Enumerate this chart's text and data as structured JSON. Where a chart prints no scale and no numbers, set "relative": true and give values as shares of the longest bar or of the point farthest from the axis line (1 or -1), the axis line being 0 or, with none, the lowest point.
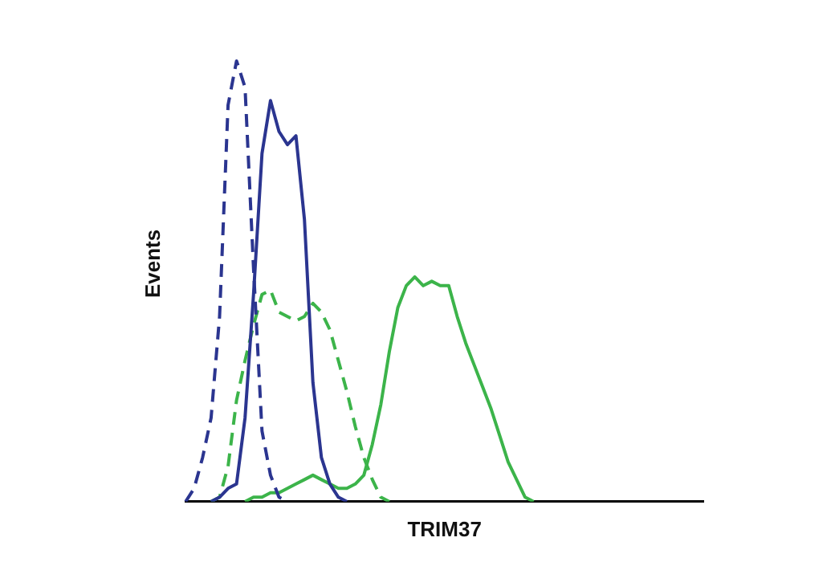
{
  "chart_data": {
    "type": "line",
    "relative": true,
    "xlabel": "TRIM37",
    "ylabel": "Events",
    "marker": "none",
    "grid": false,
    "legend": false,
    "tick_labels": false,
    "categories": [
      null,
      null,
      null,
      null,
      null,
      null,
      null,
      null,
      null,
      null,
      null,
      null,
      null,
      null,
      null,
      null,
      null,
      null,
      null,
      null,
      null,
      null,
      null,
      null,
      null,
      null,
      null,
      null,
      null,
      null,
      null,
      null,
      null,
      null,
      null,
      null,
      null,
      null,
      null,
      null,
      null,
      null,
      null,
      null,
      null,
      null,
      null,
      null,
      null,
      null,
      null,
      null,
      null,
      null,
      null,
      null,
      null,
      null,
      null,
      null,
      null,
      null
    ],
    "series": [
      {
        "color": "#2b3590",
        "line_style": "dashed",
        "values": [
          0,
          0.03,
          0.1,
          0.19,
          0.42,
          0.9,
          1.0,
          0.94,
          0.53,
          0.16,
          0.06,
          0.01,
          0,
          null,
          null,
          null,
          null,
          null,
          null,
          null,
          null,
          null,
          null,
          null,
          null,
          null,
          null,
          null,
          null,
          null,
          null,
          null,
          null,
          null,
          null,
          null,
          null,
          null,
          null,
          null,
          null,
          null,
          null,
          null,
          null,
          null,
          null,
          null,
          null,
          null,
          null,
          null,
          null,
          null,
          null,
          null,
          null,
          null,
          null,
          null,
          null,
          null
        ]
      },
      {
        "color": "#2b3590",
        "line_style": "solid",
        "values": [
          null,
          null,
          null,
          0,
          0.01,
          0.03,
          0.04,
          0.19,
          0.47,
          0.79,
          0.91,
          0.84,
          0.81,
          0.83,
          0.64,
          0.27,
          0.1,
          0.04,
          0.01,
          0,
          null,
          null,
          null,
          null,
          null,
          null,
          null,
          null,
          null,
          null,
          null,
          null,
          null,
          null,
          null,
          null,
          null,
          null,
          null,
          null,
          null,
          null,
          null,
          null,
          null,
          null,
          null,
          null,
          null,
          null,
          null,
          null,
          null,
          null,
          null,
          null,
          null,
          null,
          null,
          null,
          null,
          null
        ]
      },
      {
        "color": "#3cb44a",
        "line_style": "dashed",
        "values": [
          null,
          null,
          null,
          0,
          0.01,
          0.08,
          0.23,
          0.32,
          0.4,
          0.47,
          0.48,
          0.43,
          0.42,
          0.41,
          0.42,
          0.45,
          0.43,
          0.39,
          0.32,
          0.25,
          0.17,
          0.1,
          0.05,
          0.01,
          0,
          null,
          null,
          null,
          null,
          null,
          null,
          null,
          null,
          null,
          null,
          null,
          null,
          null,
          null,
          null,
          null,
          null,
          null,
          null,
          null,
          null,
          null,
          null,
          null,
          null,
          null,
          null,
          null,
          null,
          null,
          null,
          null,
          null,
          null,
          null,
          null,
          null
        ]
      },
      {
        "color": "#3cb44a",
        "line_style": "solid",
        "values": [
          null,
          null,
          null,
          null,
          null,
          null,
          null,
          0,
          0.01,
          0.01,
          0.02,
          0.02,
          0.03,
          0.04,
          0.05,
          0.06,
          0.05,
          0.04,
          0.03,
          0.03,
          0.04,
          0.06,
          0.13,
          0.22,
          0.34,
          0.44,
          0.49,
          0.51,
          0.49,
          0.5,
          0.49,
          0.49,
          0.42,
          0.36,
          0.31,
          0.26,
          0.21,
          0.15,
          0.09,
          0.05,
          0.01,
          0,
          null,
          null,
          null,
          null,
          null,
          null,
          null,
          null,
          null,
          null,
          null,
          null,
          null,
          null,
          null,
          null,
          null,
          null,
          null,
          null
        ]
      }
    ]
  }
}
